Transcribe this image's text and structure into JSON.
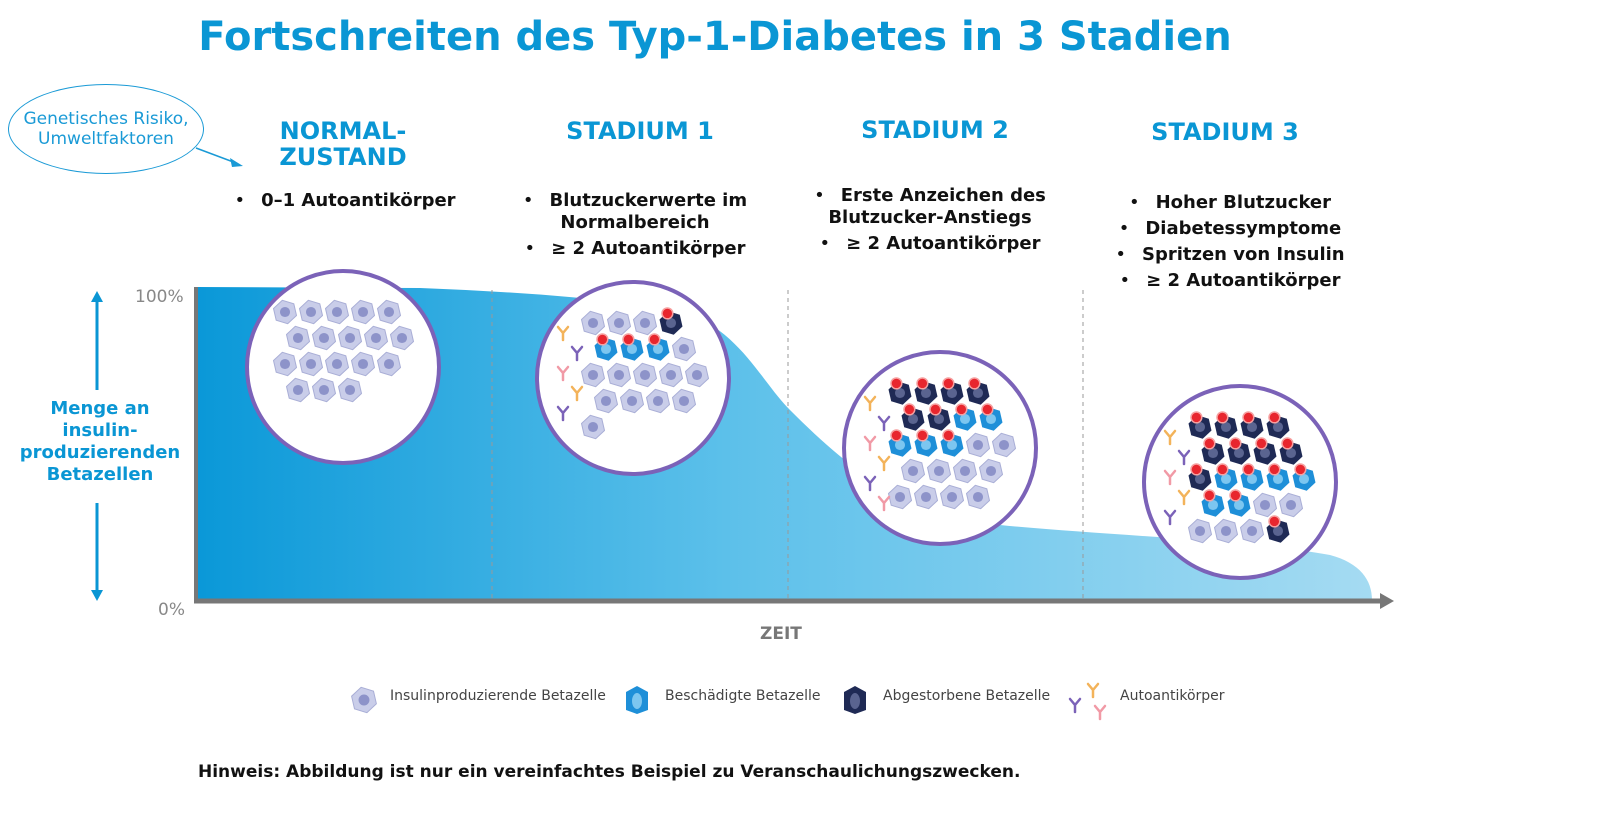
{
  "title": "Fortschreiten des Typ-1-Diabetes in 3 Stadien",
  "risk_bubble": "Genetisches Risiko, Umweltfaktoren",
  "y_axis": {
    "label": "Menge an insulin-produzierenden Betazellen",
    "top_tick": "100%",
    "bottom_tick": "0%"
  },
  "x_axis": {
    "label": "ZEIT"
  },
  "stages": [
    {
      "title": "NORMAL-ZUSTAND",
      "bullets": [
        "0–1 Autoantikörper"
      ],
      "cells": {
        "healthy": 18,
        "damaged": 0,
        "dead": 0,
        "antibodies": 0
      }
    },
    {
      "title": "STADIUM 1",
      "bullets": [
        "Blutzuckerwerte im Normalbereich",
        "≥ 2 Autoantikörper"
      ],
      "cells": {
        "healthy": 14,
        "damaged": 3,
        "dead": 1,
        "antibodies": 5
      }
    },
    {
      "title": "STADIUM 2",
      "bullets": [
        "Erste Anzeichen des Blutzucker-Anstiegs",
        "≥ 2 Autoantikörper"
      ],
      "cells": {
        "healthy": 11,
        "damaged": 5,
        "dead": 6,
        "antibodies": 6
      }
    },
    {
      "title": "STADIUM 3",
      "bullets": [
        "Hoher Blutzucker",
        "Diabetessymptome",
        "Spritzen von Insulin",
        "≥ 2 Autoantikörper"
      ],
      "cells": {
        "healthy": 5,
        "damaged": 6,
        "dead": 10,
        "antibodies": 5
      }
    }
  ],
  "curve_percent": [
    100,
    99,
    97,
    60,
    22,
    18,
    0
  ],
  "legend": [
    {
      "label": "Insulinproduzierende Betazelle",
      "icon": "healthy-cell-icon"
    },
    {
      "label": "Beschädigte Betazelle",
      "icon": "damaged-cell-icon"
    },
    {
      "label": "Abgestorbene Betazelle",
      "icon": "dead-cell-icon"
    },
    {
      "label": "Autoantikörper",
      "icon": "antibody-icon"
    }
  ],
  "note": "Hinweis: Abbildung ist nur ein vereinfachtes Beispiel zu Veranschaulichungszwecken.",
  "colors": {
    "accent": "#0a96d4",
    "circle": "#7b62b8",
    "healthy": "#c9cde9",
    "damaged": "#1e8fd8",
    "dead": "#1f2a55",
    "marker": "#e8262e"
  }
}
